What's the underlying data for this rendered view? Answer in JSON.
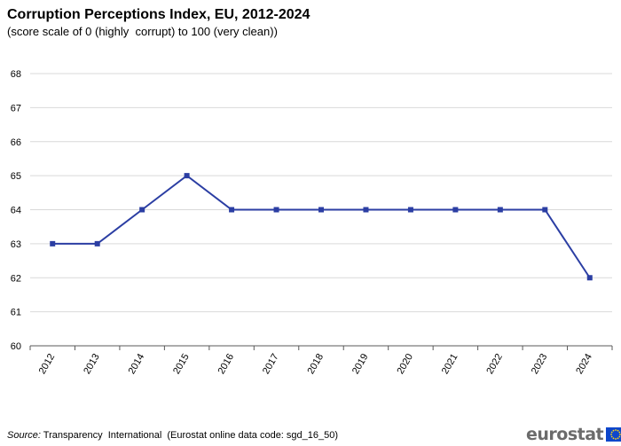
{
  "chart_data": {
    "type": "line",
    "title": "Corruption Perceptions Index, EU, 2012-2024",
    "subtitle": "(score scale of 0 (highly  corrupt) to 100 (very clean))",
    "xlabel": "",
    "ylabel": "",
    "categories": [
      "2012",
      "2013",
      "2014",
      "2015",
      "2016",
      "2017",
      "2018",
      "2019",
      "2020",
      "2021",
      "2022",
      "2023",
      "2024"
    ],
    "series": [
      {
        "values": [
          63,
          63,
          64,
          65,
          64,
          64,
          64,
          64,
          64,
          64,
          64,
          64,
          62
        ],
        "color": "#2b3ea3"
      }
    ],
    "ylim": [
      60,
      68
    ],
    "yticks": [
      60,
      61,
      62,
      63,
      64,
      65,
      66,
      67,
      68
    ],
    "grid": true,
    "legend": "none"
  },
  "source": {
    "label": "Source:",
    "text": " Transparency  International  (Eurostat online data code: sgd_16_50)"
  },
  "logo": {
    "text": "eurostat",
    "flag_color": "#0e47cb",
    "star_color": "#ffd617"
  }
}
